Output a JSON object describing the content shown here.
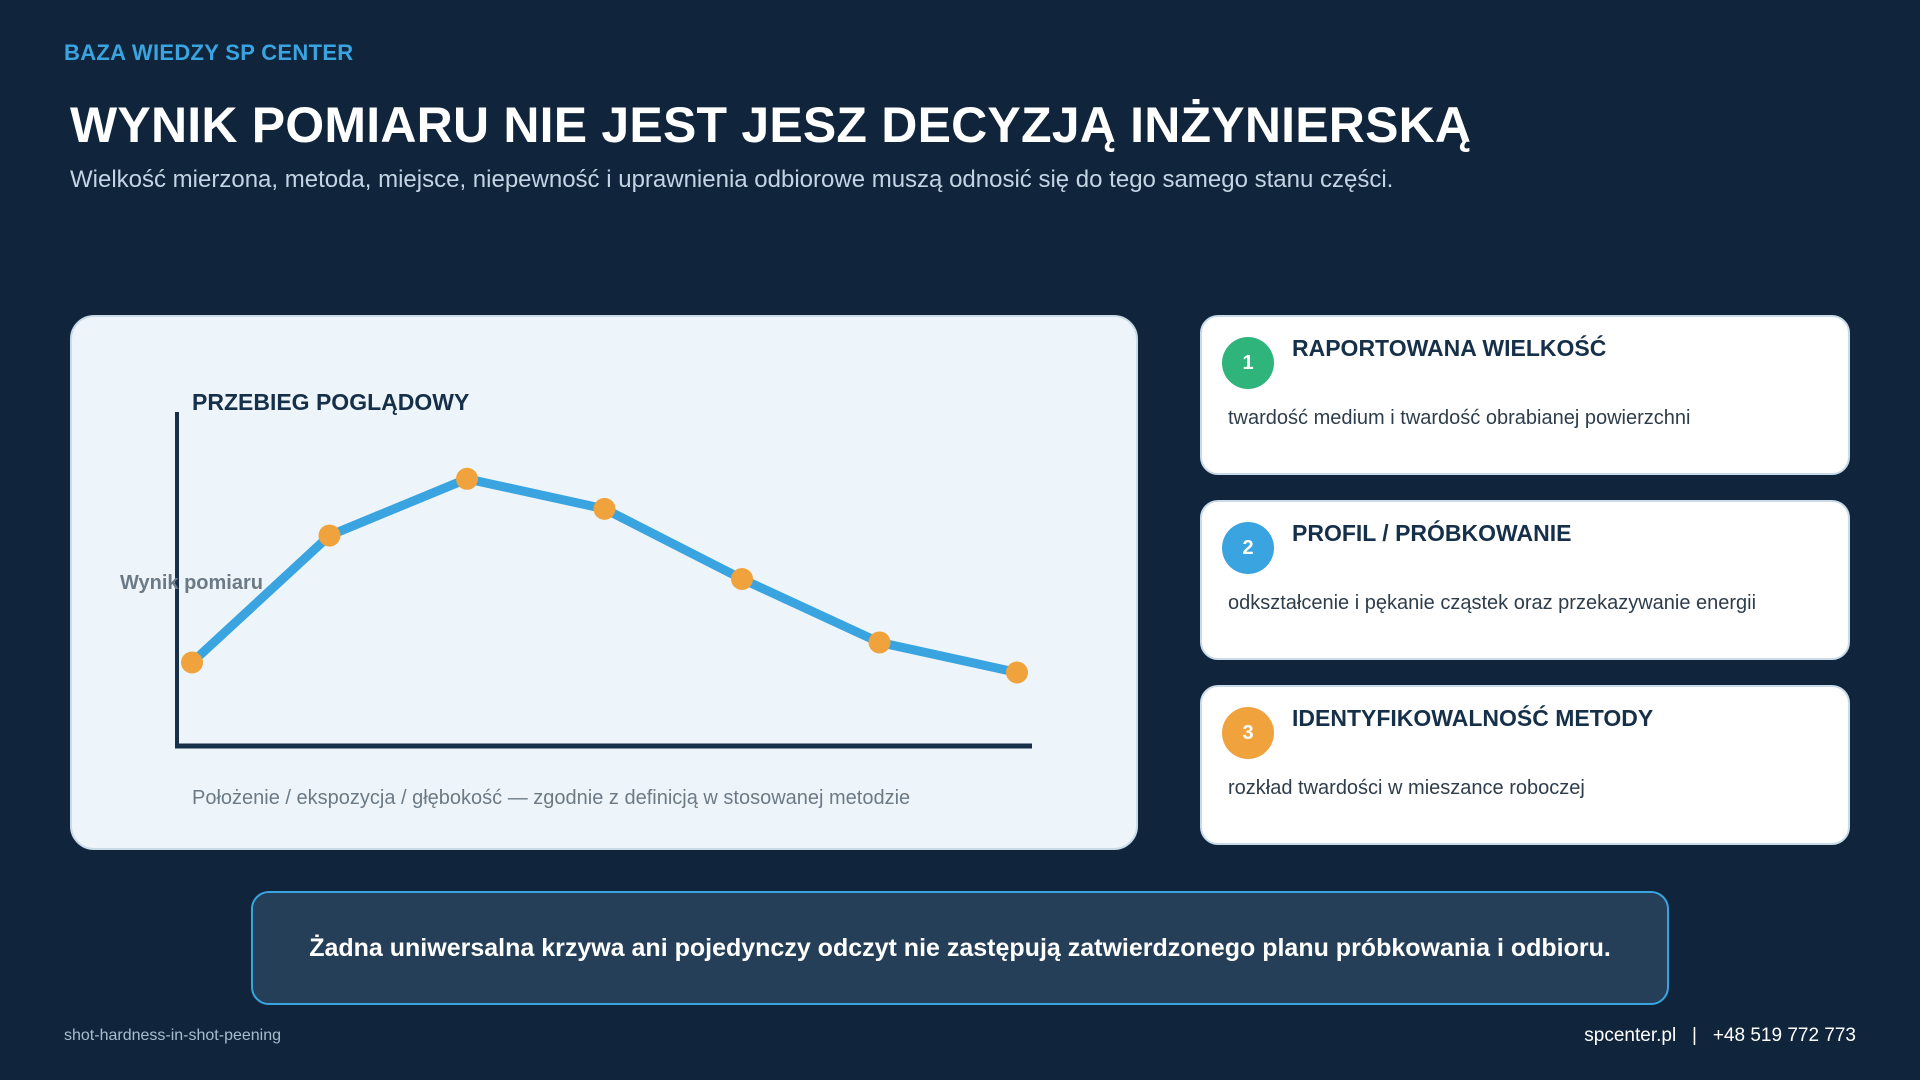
{
  "header": {
    "brand": "BAZA WIEDZY SP CENTER",
    "title": "WYNIK POMIARU NIE JEST JESZ DECYZJĄ INŻYNIERSKĄ",
    "subtitle": "Wielkość mierzona, metoda, miejsce, niepewność i uprawnienia odbiorowe muszą odnosić się do tego samego stanu części."
  },
  "colors": {
    "background": "#10253c",
    "accent": "#3aa4e0",
    "line": "#3aa4e0",
    "marker": "#f0a23c"
  },
  "chart_data": {
    "type": "line",
    "title": "PRZEBIEG POGLĄDOWY",
    "ylabel": "Wynik pomiaru",
    "xlabel": "Położenie / ekspozycja / głębokość — zgodnie z definicją w stosowanej metodzie",
    "x": [
      0,
      1,
      2,
      3,
      4,
      5,
      6
    ],
    "series": [
      {
        "values": [
          0.25,
          0.63,
          0.8,
          0.71,
          0.5,
          0.31,
          0.22
        ]
      }
    ],
    "xlim": [
      0,
      6
    ],
    "ylim": [
      0,
      1
    ],
    "grid": false
  },
  "cards": [
    {
      "number": "1",
      "title": "RAPORTOWANA WIELKOŚĆ",
      "description": "twardość medium i twardość obrabianej powierzchni",
      "color": "#2fb57c"
    },
    {
      "number": "2",
      "title": "PROFIL / PRÓBKOWANIE",
      "description": "odkształcenie i pękanie cząstek oraz przekazywanie energii",
      "color": "#3aa4e0"
    },
    {
      "number": "3",
      "title": "IDENTYFIKOWALNOŚĆ METODY",
      "description": "rozkład twardości w mieszance roboczej",
      "color": "#f0a23c"
    }
  ],
  "note": {
    "text": "Żadna uniwersalna krzywa ani pojedynczy odczyt nie zastępują zatwierdzonego planu próbkowania i odbioru."
  },
  "footer": {
    "slug": "shot-hardness-in-shot-peening",
    "website": "spcenter.pl",
    "separator": "|",
    "phone": "+48 519 772 773"
  }
}
